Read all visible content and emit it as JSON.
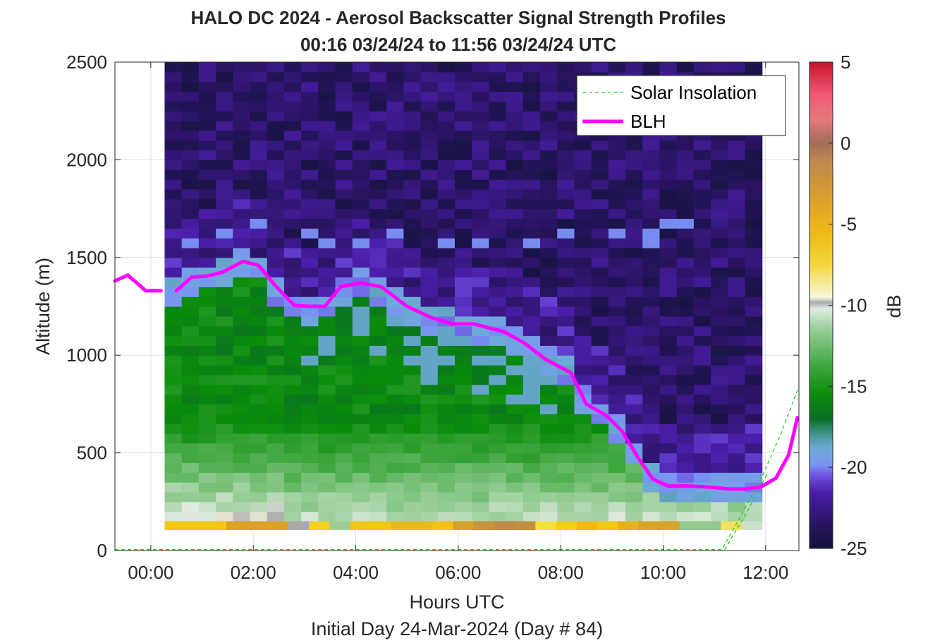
{
  "figure": {
    "title_line1": "HALO DC 2024 - Aerosol Backscatter Signal Strength Profiles",
    "title_line2": "00:16 03/24/24 to 11:56 03/24/24  UTC",
    "xlabel": "Hours UTC",
    "xlabel2": "Initial Day 24-Mar-2024 (Day # 84)",
    "ylabel": "Altitude (m)",
    "colorbar_label": "dB"
  },
  "legend": {
    "items": [
      {
        "label": "Solar Insolation",
        "color": "#22cc22",
        "style": "dashed"
      },
      {
        "label": "BLH",
        "color": "#ff00ff",
        "style": "solid"
      }
    ],
    "location": "top-right"
  },
  "chart_data": {
    "type": "heatmap",
    "title": "HALO DC 2024 - Aerosol Backscatter Signal Strength Profiles",
    "subtitle": "00:16 03/24/24 to 11:56 03/24/24  UTC",
    "xlabel": "Hours UTC",
    "ylabel": "Altitude (m)",
    "xlim": [
      -0.7,
      12.65
    ],
    "ylim": [
      0,
      2500
    ],
    "x_ticks": [
      0,
      2,
      4,
      6,
      8,
      10,
      12
    ],
    "x_tick_labels": [
      "00:00",
      "02:00",
      "04:00",
      "06:00",
      "08:00",
      "10:00",
      "12:00"
    ],
    "y_ticks": [
      0,
      500,
      1000,
      1500,
      2000,
      2500
    ],
    "y_tick_labels": [
      "0",
      "500",
      "1000",
      "1500",
      "2000",
      "2500"
    ],
    "grid": true,
    "heatmap_extent": {
      "x": [
        0.27,
        11.93
      ],
      "y": [
        100,
        2500
      ]
    },
    "colorbar": {
      "label": "dB",
      "range": [
        -25,
        5
      ],
      "ticks": [
        5,
        0,
        -5,
        -10,
        -15,
        -20,
        -25
      ]
    },
    "series": [
      {
        "name": "BLH",
        "color": "#ff00ff",
        "segments": [
          [
            [
              -0.7,
              1380
            ],
            [
              -0.45,
              1410
            ],
            [
              -0.1,
              1330
            ],
            [
              0.2,
              1330
            ]
          ],
          [
            [
              0.5,
              1330
            ],
            [
              0.8,
              1400
            ],
            [
              1.1,
              1405
            ],
            [
              1.4,
              1425
            ],
            [
              1.8,
              1480
            ],
            [
              2.1,
              1460
            ],
            [
              2.45,
              1350
            ],
            [
              2.8,
              1255
            ],
            [
              3.1,
              1250
            ],
            [
              3.4,
              1250
            ],
            [
              3.7,
              1350
            ],
            [
              4.1,
              1370
            ],
            [
              4.5,
              1350
            ],
            [
              5.0,
              1250
            ],
            [
              5.5,
              1190
            ],
            [
              5.9,
              1160
            ],
            [
              6.3,
              1160
            ],
            [
              6.6,
              1140
            ],
            [
              6.9,
              1120
            ],
            [
              7.3,
              1060
            ],
            [
              7.7,
              980
            ],
            [
              8.2,
              910
            ],
            [
              8.5,
              750
            ],
            [
              8.9,
              690
            ],
            [
              9.2,
              610
            ],
            [
              9.5,
              480
            ],
            [
              9.8,
              365
            ],
            [
              10.1,
              330
            ],
            [
              10.5,
              330
            ],
            [
              10.9,
              325
            ],
            [
              11.3,
              315
            ],
            [
              11.6,
              315
            ],
            [
              11.9,
              325
            ],
            [
              12.2,
              370
            ],
            [
              12.45,
              490
            ],
            [
              12.62,
              680
            ]
          ]
        ]
      },
      {
        "name": "Solar Insolation",
        "color": "#22cc22",
        "points": [
          [
            -0.7,
            5
          ],
          [
            11.15,
            5
          ],
          [
            11.5,
            170
          ],
          [
            11.95,
            390
          ],
          [
            12.3,
            600
          ],
          [
            12.65,
            840
          ]
        ],
        "secondary_points": [
          [
            11.2,
            5
          ],
          [
            11.6,
            180
          ],
          [
            12.05,
            400
          ]
        ]
      }
    ],
    "surface_band": {
      "altitude_range": [
        105,
        150
      ],
      "colors": [
        "#f3c814",
        "#f3c814",
        "#f3c814",
        "#dca126",
        "#dca126",
        "#dca126",
        "#aaaaaa",
        "#f3d023",
        "#9fce93",
        "#f2c816",
        "#f2c816",
        "#e7b81c",
        "#e7b81c",
        "#f3c214",
        "#d5a02c",
        "#c8943a",
        "#c28a46",
        "#c29040",
        "#f3e040",
        "#f3d014",
        "#f3b810",
        "#f3c814",
        "#e6b21b",
        "#d9a229",
        "#d9a229",
        "#92c98f",
        "#92c98f",
        "#f3e060",
        "#cce0cc"
      ]
    }
  }
}
